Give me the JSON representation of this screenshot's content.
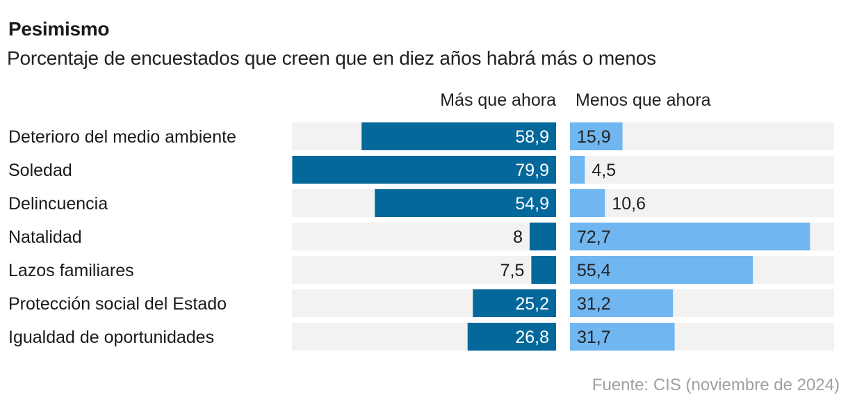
{
  "chart_data": {
    "type": "bar",
    "title": "Pesimismo",
    "subtitle": "Porcentaje de encuestados que creen que en diez años habrá más o menos",
    "categories": [
      "Deterioro del medio ambiente",
      "Soledad",
      "Delincuencia",
      "Natalidad",
      "Lazos familiares",
      "Protección social del Estado",
      "Igualdad de oportunidades"
    ],
    "series": [
      {
        "name": "Más que ahora",
        "color": "#05689B",
        "values": [
          58.9,
          79.9,
          54.9,
          8,
          7.5,
          25.2,
          26.8
        ],
        "labels": [
          "58,9",
          "79,9",
          "54,9",
          "8",
          "7,5",
          "25,2",
          "26,8"
        ]
      },
      {
        "name": "Menos que ahora",
        "color": "#70B6F0",
        "values": [
          15.9,
          4.5,
          10.6,
          72.7,
          55.4,
          31.2,
          31.7
        ],
        "labels": [
          "15,9",
          "4,5",
          "10,6",
          "72,7",
          "55,4",
          "31,2",
          "31,7"
        ]
      }
    ],
    "xlim": [
      0,
      80
    ],
    "track_color": "#F2F2F2",
    "orientation": "horizontal",
    "layout": "diverging-two-panels",
    "grid": false,
    "source": "Fuente: CIS (noviembre de 2024)"
  }
}
